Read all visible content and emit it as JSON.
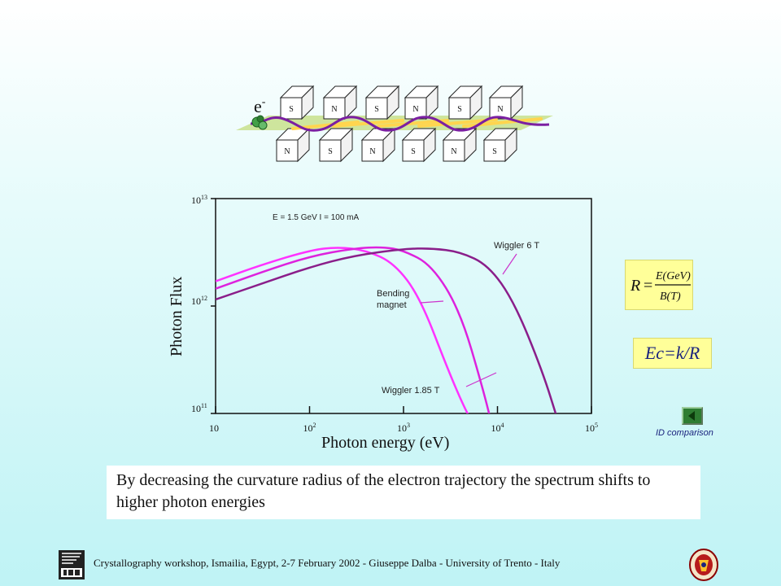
{
  "diagram": {
    "electron_label": "e",
    "electron_sup": "-",
    "top_poles": [
      "S",
      "N",
      "S",
      "N",
      "S",
      "N"
    ],
    "bottom_poles": [
      "N",
      "S",
      "N",
      "S",
      "N",
      "S"
    ]
  },
  "chart_data": {
    "type": "line",
    "x_scale": "log",
    "y_scale": "log",
    "xlim": [
      10,
      100000
    ],
    "ylim": [
      100000000000.0,
      10000000000000.0
    ],
    "xlabel": "Photon energy (eV)",
    "ylabel": "Photon Flux",
    "x_ticks": [
      {
        "base": "10",
        "exp": ""
      },
      {
        "base": "10",
        "exp": "2"
      },
      {
        "base": "10",
        "exp": "3"
      },
      {
        "base": "10",
        "exp": "4"
      },
      {
        "base": "10",
        "exp": "5"
      }
    ],
    "y_ticks": [
      {
        "base": "10",
        "exp": "13"
      },
      {
        "base": "10",
        "exp": "12"
      },
      {
        "base": "10",
        "exp": "11"
      }
    ],
    "annotation": "E = 1.5 GeV  I = 100 mA",
    "series": [
      {
        "name": "Wiggler 1.85 T",
        "color": "#ff33ff",
        "x": [
          10,
          30,
          100,
          200,
          400,
          800,
          1500,
          3000,
          4500,
          6000
        ],
        "y": [
          1700000000000.0,
          2400000000000.0,
          3300000000000.0,
          3550000000000.0,
          3300000000000.0,
          2500000000000.0,
          1200000000000.0,
          250000000000.0,
          110000000000.0,
          70000000000.0
        ]
      },
      {
        "name": "Bending magnet",
        "color": "#dd22dd",
        "x": [
          10,
          30,
          100,
          300,
          600,
          1000,
          2000,
          4000,
          7000,
          9000
        ],
        "y": [
          1450000000000.0,
          2050000000000.0,
          2900000000000.0,
          3450000000000.0,
          3550000000000.0,
          3300000000000.0,
          2400000000000.0,
          900000000000.0,
          170000000000.0,
          70000000000.0
        ]
      },
      {
        "name": "Wiggler 6 T",
        "color": "#8a1e8a",
        "x": [
          10,
          30,
          100,
          300,
          1000,
          2000,
          4000,
          8000,
          15000,
          30000,
          45000
        ],
        "y": [
          1150000000000.0,
          1600000000000.0,
          2300000000000.0,
          2950000000000.0,
          3400000000000.0,
          3450000000000.0,
          3200000000000.0,
          2400000000000.0,
          1100000000000.0,
          250000000000.0,
          80000000000.0
        ]
      }
    ],
    "labels": {
      "wiggler6": "Wiggler  6 T",
      "bending": [
        "Bending",
        "magnet"
      ],
      "wiggler185": "Wiggler  1.85 T"
    },
    "grid": false
  },
  "formula": {
    "lhs": "R",
    "numerator": "E(GeV)",
    "denominator": "B(T)"
  },
  "ec_text": "Ec=k/R",
  "id_button_label": "ID comparison",
  "caption": "By decreasing the curvature radius of the electron trajectory the spectrum shifts to higher photon energies",
  "footer": "Crystallography workshop, Ismailia, Egypt, 2-7 February  2002 - Giuseppe Dalba -  University of Trento - Italy",
  "colors": {
    "pole_box": "#ffffff",
    "beam_band": "#c8e08c",
    "trajectory": "#7b1fa2",
    "photon_ray": "#ffd54f",
    "electron": "#43a047",
    "formula_bg": "#ffff99",
    "ec_text": "#1a237e"
  }
}
